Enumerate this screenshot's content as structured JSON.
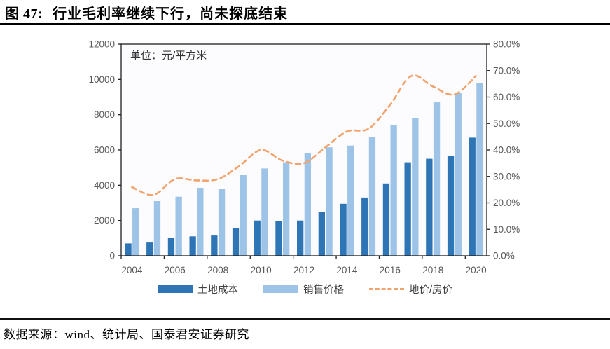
{
  "header": {
    "figure_label": "图 47:",
    "figure_title": "行业毛利率继续下行，尚未探底结束"
  },
  "chart": {
    "unit_label": "单位：元/平方米"
  },
  "legend": {
    "items": [
      {
        "label": "土地成本",
        "type": "bar",
        "color": "#2E75B6"
      },
      {
        "label": "销售价格",
        "type": "bar",
        "color": "#9DC3E6"
      },
      {
        "label": "地价/房价",
        "type": "line",
        "color": "#F1A36E"
      }
    ]
  },
  "footer": {
    "source": "数据来源：wind、统计局、国泰君安证券研究"
  },
  "chart_data": {
    "type": "bar+line",
    "unit_label": "单位：元/平方米",
    "categories": [
      2004,
      2005,
      2006,
      2007,
      2008,
      2009,
      2010,
      2011,
      2012,
      2013,
      2014,
      2015,
      2016,
      2017,
      2018,
      2019,
      2020
    ],
    "series": [
      {
        "name": "土地成本",
        "type": "bar",
        "axis": "left",
        "color": "#2E75B6",
        "values": [
          700,
          750,
          1000,
          1100,
          1150,
          1550,
          2000,
          1950,
          2000,
          2500,
          2950,
          3300,
          4100,
          5300,
          5500,
          5650,
          6700
        ]
      },
      {
        "name": "销售价格",
        "type": "bar",
        "axis": "left",
        "color": "#9DC3E6",
        "values": [
          2700,
          3100,
          3350,
          3850,
          3800,
          4600,
          4950,
          5300,
          5800,
          6150,
          6250,
          6750,
          7400,
          7800,
          8700,
          9250,
          9800
        ]
      },
      {
        "name": "地价/房价",
        "type": "line",
        "axis": "right",
        "style": "dashed",
        "color": "#F1A36E",
        "values_pct": [
          26,
          23,
          29,
          28.5,
          29,
          34,
          40,
          36,
          35,
          41,
          47,
          48,
          57,
          68,
          64,
          61,
          68
        ]
      }
    ],
    "left_axis": {
      "min": 0,
      "max": 12000,
      "step": 2000,
      "tick_labels": [
        "0",
        "2000",
        "4000",
        "6000",
        "8000",
        "10000",
        "12000"
      ]
    },
    "right_axis": {
      "min": 0,
      "max": 80,
      "step": 10,
      "tick_labels": [
        "0.0%",
        "10.0%",
        "20.0%",
        "30.0%",
        "40.0%",
        "50.0%",
        "60.0%",
        "70.0%",
        "80.0%"
      ]
    },
    "x_tick_labels": [
      "2004",
      "2006",
      "2008",
      "2010",
      "2012",
      "2014",
      "2016",
      "2018",
      "2020"
    ],
    "grid": false,
    "legend_position": "bottom",
    "axis_color": "#1f1f1f",
    "tick_label_color": "#595959",
    "plot_bg": "#fcfcfe"
  }
}
